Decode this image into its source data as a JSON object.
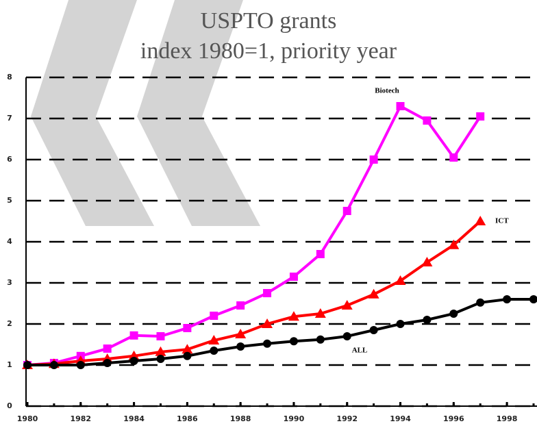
{
  "chart_data": {
    "type": "line",
    "title": "USPTO grants",
    "subtitle": "index 1980=1, priority year",
    "x": [
      1980,
      1981,
      1982,
      1983,
      1984,
      1985,
      1986,
      1987,
      1988,
      1989,
      1990,
      1991,
      1992,
      1993,
      1994,
      1995,
      1996,
      1997,
      1998,
      1999
    ],
    "series": [
      {
        "name": "Biotech",
        "color": "#ff00ff",
        "marker": "square",
        "values": [
          1.0,
          1.05,
          1.22,
          1.4,
          1.72,
          1.7,
          1.9,
          2.2,
          2.45,
          2.75,
          3.15,
          3.7,
          4.75,
          6.0,
          7.3,
          6.95,
          6.05,
          7.05,
          null,
          null
        ]
      },
      {
        "name": "ICT",
        "color": "#ff0000",
        "marker": "triangle",
        "values": [
          1.0,
          1.03,
          1.1,
          1.15,
          1.22,
          1.32,
          1.38,
          1.6,
          1.75,
          2.0,
          2.18,
          2.25,
          2.45,
          2.72,
          3.05,
          3.5,
          3.92,
          4.5,
          null,
          null
        ]
      },
      {
        "name": "ALL",
        "color": "#000000",
        "marker": "circle",
        "values": [
          1.0,
          1.0,
          1.0,
          1.05,
          1.1,
          1.15,
          1.22,
          1.35,
          1.45,
          1.52,
          1.58,
          1.62,
          1.7,
          1.85,
          2.0,
          2.1,
          2.25,
          2.52,
          2.6,
          2.6
        ]
      }
    ],
    "xlim": [
      1980,
      1999
    ],
    "xticks": [
      1980,
      1982,
      1984,
      1986,
      1988,
      1990,
      1992,
      1994,
      1996,
      1998
    ],
    "ylim": [
      0,
      8
    ],
    "yticks": [
      0,
      1,
      2,
      3,
      4,
      5,
      6,
      7,
      8
    ],
    "grid": true
  }
}
